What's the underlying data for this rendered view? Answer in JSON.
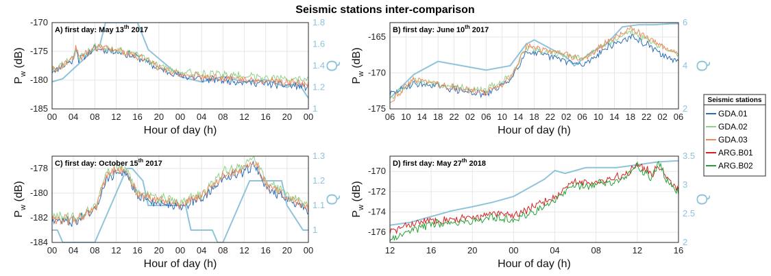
{
  "figure": {
    "title": "Seismic stations inter-comparison"
  },
  "legend": {
    "title": "Seismic stations",
    "items": [
      {
        "name": "GDA.01",
        "color": "#2a6cb8"
      },
      {
        "name": "GDA.02",
        "color": "#8fd18a"
      },
      {
        "name": "GDA.03",
        "color": "#f0885a"
      },
      {
        "name": "ARG.B01",
        "color": "#d42020"
      },
      {
        "name": "ARG.B02",
        "color": "#23a035"
      }
    ]
  },
  "chart_data": [
    {
      "type": "line",
      "panel_label": "A) first day: May 13th 2017",
      "label_main": "A) first day: May 13",
      "label_sup": "th",
      "label_tail": " 2017",
      "xlabel": "Hour of day (h)",
      "ylabel_main": "P",
      "ylabel_sub": "w",
      "ylabel_unit": " (dB)",
      "ylabel_right": "Q",
      "x_ticks": [
        "00",
        "04",
        "08",
        "12",
        "16",
        "20",
        "00",
        "04",
        "08",
        "12",
        "16",
        "20",
        "00"
      ],
      "xlim": [
        0,
        48
      ],
      "ylim": [
        -185,
        -170
      ],
      "y_ticks": [
        "-170",
        "-175",
        "-180",
        "-185"
      ],
      "y_right_lim": [
        1,
        1.8
      ],
      "y_right_ticks": [
        "1",
        "1.2",
        "1.4",
        "1.6",
        "1.8"
      ],
      "seed": 11,
      "noise": 0.55,
      "series": [
        {
          "name": "GDA.01",
          "x": [
            0,
            4,
            4.5,
            5,
            8,
            12,
            16,
            20,
            24,
            28,
            32,
            36,
            40,
            44,
            48
          ],
          "y": [
            -178.5,
            -176.5,
            -174,
            -176.5,
            -174.5,
            -175,
            -176,
            -178,
            -179.2,
            -179.8,
            -180,
            -180.3,
            -180.6,
            -180.9,
            -181.2
          ]
        },
        {
          "name": "GDA.02",
          "x": [
            0,
            4,
            4.5,
            5,
            8,
            12,
            16,
            20,
            24,
            28,
            32,
            36,
            40,
            44,
            48
          ],
          "y": [
            -178.2,
            -176.2,
            -173.8,
            -176.2,
            -174.2,
            -174.7,
            -175.6,
            -177.5,
            -178.6,
            -178.9,
            -179,
            -179.2,
            -179.5,
            -179.8,
            -180
          ]
        },
        {
          "name": "GDA.03",
          "x": [
            0,
            4,
            4.5,
            5,
            8,
            12,
            16,
            20,
            24,
            28,
            32,
            36,
            40,
            44,
            48
          ],
          "y": [
            -178.3,
            -176.3,
            -173.9,
            -176.3,
            -174.3,
            -174.8,
            -175.8,
            -177.8,
            -179,
            -179.4,
            -179.6,
            -179.8,
            -180.1,
            -180.4,
            -180.7
          ]
        }
      ],
      "q_series": {
        "name": "Q",
        "x": [
          0,
          2,
          9,
          10,
          16,
          18,
          24,
          28,
          32,
          36,
          40,
          44,
          46,
          48
        ],
        "y": [
          1.25,
          1.28,
          1.6,
          1.8,
          1.8,
          1.55,
          1.3,
          1.25,
          1.3,
          1.25,
          1.27,
          1.2,
          1.25,
          1.1
        ]
      }
    },
    {
      "type": "line",
      "panel_label": "B) first day: June 10th 2017",
      "label_main": "B) first day: June 10",
      "label_sup": "th",
      "label_tail": " 2017",
      "xlabel": "Hour of day (h)",
      "ylabel_main": "P",
      "ylabel_sub": "w",
      "ylabel_unit": " (dB)",
      "ylabel_right": "Q",
      "x_ticks": [
        "06",
        "10",
        "14",
        "18",
        "22",
        "02",
        "06",
        "10",
        "14",
        "18",
        "22",
        "02",
        "06",
        "10",
        "14",
        "18",
        "22",
        "02",
        "06"
      ],
      "xlim": [
        0,
        72
      ],
      "ylim": [
        -175,
        -163
      ],
      "y_ticks": [
        "-165",
        "-170",
        "-175"
      ],
      "y_right_lim": [
        2,
        6
      ],
      "y_right_ticks": [
        "2",
        "4",
        "6"
      ],
      "seed": 29,
      "noise": 0.4,
      "series": [
        {
          "name": "GDA.01",
          "x": [
            0,
            6,
            12,
            18,
            24,
            30,
            34,
            38,
            42,
            48,
            54,
            60,
            64,
            68,
            72
          ],
          "y": [
            -173,
            -171.5,
            -171.8,
            -172.5,
            -173,
            -171,
            -167,
            -167.5,
            -168,
            -169,
            -166.5,
            -165,
            -166,
            -167.5,
            -168.5
          ]
        },
        {
          "name": "GDA.02",
          "x": [
            0,
            6,
            12,
            18,
            24,
            30,
            34,
            38,
            42,
            48,
            54,
            60,
            64,
            68,
            72
          ],
          "y": [
            -173.5,
            -171,
            -171.6,
            -172,
            -172.3,
            -170.5,
            -166.5,
            -167,
            -167.3,
            -168,
            -166,
            -164.2,
            -165.3,
            -166.5,
            -167.5
          ]
        },
        {
          "name": "GDA.03",
          "x": [
            0,
            6,
            12,
            18,
            24,
            30,
            34,
            38,
            42,
            48,
            54,
            60,
            64,
            68,
            72
          ],
          "y": [
            -174,
            -170.8,
            -171.5,
            -172.3,
            -172.8,
            -170.8,
            -166.2,
            -166.8,
            -167.2,
            -168.2,
            -165.8,
            -163.8,
            -165,
            -166.3,
            -167.3
          ]
        }
      ],
      "q_series": {
        "name": "Q",
        "x": [
          0,
          6,
          12,
          18,
          24,
          30,
          34,
          36,
          40,
          44,
          46,
          50,
          54,
          58,
          62,
          66,
          70,
          72
        ],
        "y": [
          2.5,
          3.6,
          4.2,
          4.0,
          3.8,
          4.0,
          5.0,
          5.2,
          4.8,
          4.4,
          4.0,
          4.6,
          5.0,
          5.8,
          5.9,
          5.9,
          5.95,
          5.95
        ]
      }
    },
    {
      "type": "line",
      "panel_label": "C) first day: October 15th 2017",
      "label_main": "C) first day: October 15",
      "label_sup": "th",
      "label_tail": " 2017",
      "xlabel": "Hour of day (h)",
      "ylabel_main": "P",
      "ylabel_sub": "w",
      "ylabel_unit": " (dB)",
      "ylabel_right": "Q",
      "x_ticks": [
        "00",
        "04",
        "08",
        "12",
        "16",
        "20",
        "00",
        "04",
        "08",
        "12",
        "16",
        "20",
        "00"
      ],
      "xlim": [
        0,
        48
      ],
      "ylim": [
        -184,
        -177
      ],
      "y_ticks": [
        "-178",
        "-180",
        "-182",
        "-184"
      ],
      "y_right_lim": [
        0.95,
        1.3
      ],
      "y_right_ticks": [
        "1",
        "1.1",
        "1.2",
        "1.3"
      ],
      "seed": 47,
      "noise": 0.35,
      "series": [
        {
          "name": "GDA.01",
          "x": [
            0,
            4,
            8,
            10,
            12,
            14,
            16,
            20,
            24,
            28,
            32,
            36,
            38,
            40,
            44,
            48
          ],
          "y": [
            -182.2,
            -182.3,
            -181.5,
            -179,
            -178.3,
            -178.5,
            -180.3,
            -180.8,
            -181,
            -180.5,
            -178.8,
            -178.3,
            -177.6,
            -179.5,
            -180.5,
            -181.5
          ]
        },
        {
          "name": "GDA.02",
          "x": [
            0,
            4,
            8,
            10,
            12,
            14,
            16,
            20,
            24,
            28,
            32,
            36,
            38,
            40,
            44,
            48
          ],
          "y": [
            -181.9,
            -182,
            -181.2,
            -178.6,
            -177.9,
            -178,
            -179.9,
            -180.4,
            -180.7,
            -180.1,
            -178.3,
            -177.8,
            -177.1,
            -179,
            -180.1,
            -181
          ]
        },
        {
          "name": "GDA.03",
          "x": [
            0,
            4,
            8,
            10,
            12,
            14,
            16,
            20,
            24,
            28,
            32,
            36,
            38,
            40,
            44,
            48
          ],
          "y": [
            -182.1,
            -182.2,
            -181.4,
            -178.8,
            -178.1,
            -178.3,
            -180.1,
            -180.6,
            -180.9,
            -180.3,
            -178.6,
            -178.1,
            -177.4,
            -179.3,
            -180.3,
            -181.3
          ]
        }
      ],
      "q_series": {
        "name": "Q",
        "x": [
          0,
          1,
          2,
          8,
          9,
          14,
          15,
          17,
          18,
          25,
          26,
          30,
          31,
          32,
          37,
          38,
          43,
          44,
          47,
          48
        ],
        "y": [
          1.0,
          1.0,
          0.95,
          0.95,
          1.0,
          1.25,
          1.25,
          1.2,
          1.1,
          1.1,
          1.0,
          1.0,
          0.95,
          0.95,
          1.2,
          1.2,
          1.2,
          1.1,
          1.0,
          1.0
        ]
      }
    },
    {
      "type": "line",
      "panel_label": "D) first day: May 27th 2018",
      "label_main": "D) first day: May 27",
      "label_sup": "th",
      "label_tail": " 2018",
      "xlabel": "Hour of day (h)",
      "ylabel_main": "P",
      "ylabel_sub": "w",
      "ylabel_unit": " (dB)",
      "ylabel_right": "Q",
      "x_ticks": [
        "12",
        "16",
        "20",
        "00",
        "04",
        "08",
        "12",
        "16"
      ],
      "xlim": [
        0,
        28
      ],
      "ylim": [
        -177,
        -168.5
      ],
      "y_ticks": [
        "-170",
        "-172",
        "-174",
        "-176"
      ],
      "y_right_lim": [
        2,
        3.5
      ],
      "y_right_ticks": [
        "2",
        "2.5",
        "3",
        "3.5"
      ],
      "seed": 83,
      "noise": 0.35,
      "series": [
        {
          "name": "ARG.B01",
          "x": [
            0,
            2,
            4,
            8,
            10,
            12,
            14,
            16,
            18,
            19.5,
            20,
            22,
            23,
            24,
            25.5,
            26,
            27,
            28
          ],
          "y": [
            -176,
            -175.2,
            -174.8,
            -174.6,
            -174.2,
            -174.3,
            -173.5,
            -172.5,
            -171,
            -171.2,
            -171,
            -170.6,
            -170.2,
            -169.2,
            -170.3,
            -169.2,
            -170.8,
            -171.8
          ]
        },
        {
          "name": "ARG.B02",
          "x": [
            0,
            2,
            4,
            8,
            10,
            12,
            14,
            16,
            18,
            19.5,
            20,
            22,
            23,
            24,
            25.5,
            26,
            27,
            28
          ],
          "y": [
            -176.8,
            -175.8,
            -175.2,
            -174.9,
            -174.6,
            -174.7,
            -174,
            -172.8,
            -171.3,
            -171.5,
            -171.2,
            -170.9,
            -170.5,
            -169.5,
            -170.7,
            -169.1,
            -171.1,
            -172.2
          ]
        }
      ],
      "q_series": {
        "name": "Q",
        "x": [
          0,
          2,
          4,
          6,
          8,
          10,
          12,
          14,
          15,
          16,
          17,
          19,
          20,
          22,
          24,
          26,
          28
        ],
        "y": [
          2.3,
          2.35,
          2.45,
          2.55,
          2.62,
          2.7,
          2.8,
          3.0,
          3.1,
          3.25,
          3.2,
          3.3,
          3.3,
          3.3,
          3.35,
          3.4,
          3.42
        ]
      }
    }
  ]
}
